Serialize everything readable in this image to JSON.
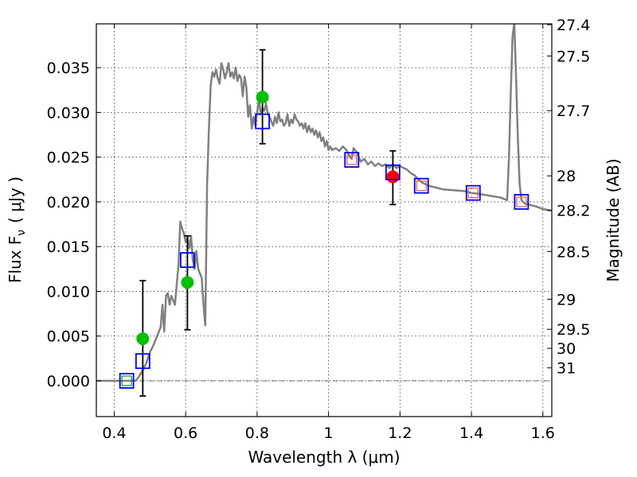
{
  "chart_data": {
    "type": "scatter",
    "xlabel": "Wavelength  λ (μm)",
    "ylabel": "Flux  F",
    "ylabel_sub": "ν",
    "ylabel_unit": "( μJy )",
    "y2label": "Magnitude (AB)",
    "xlim": [
      0.35,
      1.625
    ],
    "ylim": [
      -0.004,
      0.0399
    ],
    "grid": true,
    "x_ticks": [
      0.4,
      0.6,
      0.8,
      1.0,
      1.2,
      1.4,
      1.6
    ],
    "x_tick_labels": [
      "0.4",
      "0.6",
      "0.8",
      "1",
      "1.2",
      "1.4",
      "1.6"
    ],
    "y_ticks": [
      0.0,
      0.005,
      0.01,
      0.015,
      0.02,
      0.025,
      0.03,
      0.035
    ],
    "y_tick_labels": [
      "0.000",
      "0.005",
      "0.010",
      "0.015",
      "0.020",
      "0.025",
      "0.030",
      "0.035"
    ],
    "mag_ticks": [
      {
        "mag": 27.4,
        "label": "27.4"
      },
      {
        "mag": 27.5,
        "label": "27.5"
      },
      {
        "mag": 27.7,
        "label": "27.7"
      },
      {
        "mag": 28.0,
        "label": "28"
      },
      {
        "mag": 28.2,
        "label": "28.2"
      },
      {
        "mag": 28.5,
        "label": "28.5"
      },
      {
        "mag": 29.0,
        "label": "29"
      },
      {
        "mag": 29.5,
        "label": "29.5"
      },
      {
        "mag": 30.0,
        "label": "30"
      },
      {
        "mag": 31.0,
        "label": "31"
      }
    ],
    "zero_line": 0.0,
    "series": [
      {
        "name": "model spectrum",
        "kind": "line",
        "color": "#808080",
        "points": [
          [
            0.35,
            0.0
          ],
          [
            0.46,
            0.0
          ],
          [
            0.47,
            0.0005
          ],
          [
            0.48,
            0.0012
          ],
          [
            0.49,
            0.002
          ],
          [
            0.5,
            0.0032
          ],
          [
            0.51,
            0.004
          ],
          [
            0.52,
            0.005
          ],
          [
            0.53,
            0.006
          ],
          [
            0.535,
            0.0085
          ],
          [
            0.54,
            0.0055
          ],
          [
            0.545,
            0.0095
          ],
          [
            0.55,
            0.0098
          ],
          [
            0.555,
            0.0085
          ],
          [
            0.56,
            0.0095
          ],
          [
            0.565,
            0.009
          ],
          [
            0.57,
            0.0085
          ],
          [
            0.58,
            0.013
          ],
          [
            0.585,
            0.0178
          ],
          [
            0.59,
            0.017
          ],
          [
            0.595,
            0.0165
          ],
          [
            0.6,
            0.0155
          ],
          [
            0.605,
            0.016
          ],
          [
            0.61,
            0.0148
          ],
          [
            0.615,
            0.0162
          ],
          [
            0.62,
            0.0135
          ],
          [
            0.625,
            0.0125
          ],
          [
            0.63,
            0.0145
          ],
          [
            0.635,
            0.0125
          ],
          [
            0.64,
            0.012
          ],
          [
            0.645,
            0.0115
          ],
          [
            0.65,
            0.0085
          ],
          [
            0.655,
            0.0062
          ],
          [
            0.66,
            0.022
          ],
          [
            0.665,
            0.028
          ],
          [
            0.67,
            0.033
          ],
          [
            0.675,
            0.0345
          ],
          [
            0.68,
            0.034
          ],
          [
            0.685,
            0.0348
          ],
          [
            0.69,
            0.0338
          ],
          [
            0.695,
            0.0332
          ],
          [
            0.7,
            0.0355
          ],
          [
            0.705,
            0.0348
          ],
          [
            0.71,
            0.0338
          ],
          [
            0.715,
            0.0345
          ],
          [
            0.72,
            0.0355
          ],
          [
            0.725,
            0.034
          ],
          [
            0.73,
            0.0345
          ],
          [
            0.735,
            0.0338
          ],
          [
            0.74,
            0.035
          ],
          [
            0.745,
            0.0335
          ],
          [
            0.75,
            0.0342
          ],
          [
            0.755,
            0.0338
          ],
          [
            0.76,
            0.0318
          ],
          [
            0.765,
            0.034
          ],
          [
            0.77,
            0.0328
          ],
          [
            0.775,
            0.0295
          ],
          [
            0.78,
            0.0308
          ],
          [
            0.785,
            0.0282
          ],
          [
            0.79,
            0.0295
          ],
          [
            0.795,
            0.0285
          ],
          [
            0.8,
            0.03
          ],
          [
            0.805,
            0.0315
          ],
          [
            0.81,
            0.0298
          ],
          [
            0.815,
            0.0305
          ],
          [
            0.82,
            0.0302
          ],
          [
            0.825,
            0.031
          ],
          [
            0.83,
            0.0298
          ],
          [
            0.835,
            0.0295
          ],
          [
            0.84,
            0.029
          ],
          [
            0.845,
            0.0285
          ],
          [
            0.85,
            0.0295
          ],
          [
            0.855,
            0.0288
          ],
          [
            0.86,
            0.03
          ],
          [
            0.865,
            0.029
          ],
          [
            0.87,
            0.0292
          ],
          [
            0.875,
            0.0285
          ],
          [
            0.88,
            0.0288
          ],
          [
            0.885,
            0.0298
          ],
          [
            0.89,
            0.0285
          ],
          [
            0.895,
            0.0292
          ],
          [
            0.9,
            0.0288
          ],
          [
            0.905,
            0.0298
          ],
          [
            0.91,
            0.0292
          ],
          [
            0.915,
            0.029
          ],
          [
            0.92,
            0.0285
          ],
          [
            0.925,
            0.0288
          ],
          [
            0.93,
            0.0282
          ],
          [
            0.935,
            0.0288
          ],
          [
            0.94,
            0.0278
          ],
          [
            0.945,
            0.0285
          ],
          [
            0.95,
            0.0278
          ],
          [
            0.955,
            0.0282
          ],
          [
            0.96,
            0.0275
          ],
          [
            0.965,
            0.028
          ],
          [
            0.97,
            0.0272
          ],
          [
            0.975,
            0.0278
          ],
          [
            0.98,
            0.0268
          ],
          [
            0.985,
            0.0272
          ],
          [
            0.99,
            0.0262
          ],
          [
            0.995,
            0.0268
          ],
          [
            1.0,
            0.0258
          ],
          [
            1.005,
            0.0262
          ],
          [
            1.01,
            0.0258
          ],
          [
            1.02,
            0.026
          ],
          [
            1.03,
            0.0257
          ],
          [
            1.04,
            0.0262
          ],
          [
            1.05,
            0.0258
          ],
          [
            1.06,
            0.025
          ],
          [
            1.065,
            0.0248
          ],
          [
            1.07,
            0.026
          ],
          [
            1.08,
            0.0255
          ],
          [
            1.09,
            0.0245
          ],
          [
            1.1,
            0.0248
          ],
          [
            1.11,
            0.0242
          ],
          [
            1.12,
            0.0245
          ],
          [
            1.13,
            0.024
          ],
          [
            1.14,
            0.0243
          ],
          [
            1.15,
            0.024
          ],
          [
            1.16,
            0.0242
          ],
          [
            1.17,
            0.0238
          ],
          [
            1.18,
            0.0242
          ],
          [
            1.19,
            0.0238
          ],
          [
            1.2,
            0.024
          ],
          [
            1.21,
            0.0238
          ],
          [
            1.22,
            0.0236
          ],
          [
            1.23,
            0.0232
          ],
          [
            1.24,
            0.023
          ],
          [
            1.25,
            0.0226
          ],
          [
            1.26,
            0.0222
          ],
          [
            1.27,
            0.022
          ],
          [
            1.28,
            0.0218
          ],
          [
            1.3,
            0.0216
          ],
          [
            1.32,
            0.0214
          ],
          [
            1.35,
            0.0213
          ],
          [
            1.38,
            0.0212
          ],
          [
            1.4,
            0.021
          ],
          [
            1.42,
            0.0209
          ],
          [
            1.45,
            0.0207
          ],
          [
            1.48,
            0.0205
          ],
          [
            1.5,
            0.0202
          ],
          [
            1.505,
            0.025
          ],
          [
            1.51,
            0.032
          ],
          [
            1.515,
            0.0385
          ],
          [
            1.52,
            0.04
          ],
          [
            1.525,
            0.034
          ],
          [
            1.53,
            0.027
          ],
          [
            1.535,
            0.022
          ],
          [
            1.54,
            0.0202
          ],
          [
            1.55,
            0.0198
          ],
          [
            1.56,
            0.0197
          ],
          [
            1.58,
            0.0195
          ],
          [
            1.6,
            0.0192
          ],
          [
            1.625,
            0.019
          ]
        ]
      },
      {
        "name": "green detections",
        "kind": "points",
        "color": "#00c000",
        "points": [
          [
            0.48,
            0.0047
          ],
          [
            0.605,
            0.011
          ],
          [
            0.815,
            0.0317
          ]
        ]
      },
      {
        "name": "red detection",
        "kind": "points",
        "color": "#ff0000",
        "points": [
          [
            1.18,
            0.0228
          ]
        ]
      },
      {
        "name": "model photometry (blue squares)",
        "kind": "squares",
        "color": "#0000ff",
        "points": [
          [
            0.435,
            0.0
          ],
          [
            0.48,
            0.0022
          ],
          [
            0.605,
            0.0135
          ],
          [
            0.815,
            0.029
          ],
          [
            1.065,
            0.0247
          ],
          [
            1.18,
            0.0233
          ],
          [
            1.26,
            0.0218
          ],
          [
            1.405,
            0.021
          ],
          [
            1.54,
            0.02
          ]
        ]
      },
      {
        "name": "inner squares",
        "kind": "inner_squares",
        "points": [
          {
            "x": 0.435,
            "y": 0.0,
            "color": "#00a000"
          },
          {
            "x": 1.065,
            "y": 0.0247,
            "color": "#ff5050"
          },
          {
            "x": 1.26,
            "y": 0.0218,
            "color": "#ff5050"
          },
          {
            "x": 1.405,
            "y": 0.021,
            "color": "#ff5050"
          },
          {
            "x": 1.54,
            "y": 0.02,
            "color": "#ff5050"
          }
        ]
      }
    ],
    "error_bars": [
      {
        "x": 0.48,
        "low": -0.0017,
        "high": 0.0112
      },
      {
        "x": 0.605,
        "low": 0.0057,
        "high": 0.0162
      },
      {
        "x": 0.815,
        "low": 0.0265,
        "high": 0.037
      },
      {
        "x": 1.18,
        "low": 0.0197,
        "high": 0.0257
      }
    ]
  }
}
